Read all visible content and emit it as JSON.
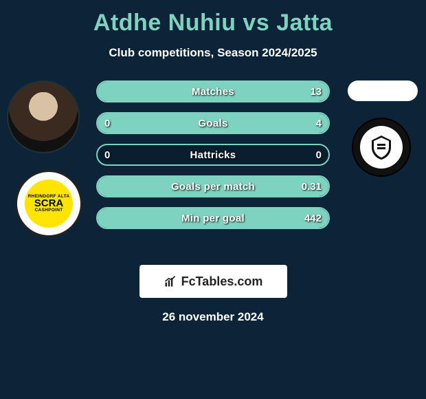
{
  "title": "Atdhe Nuhiu vs Jatta",
  "subtitle": "Club competitions, Season 2024/2025",
  "date": "26 november 2024",
  "brand": "FcTables.com",
  "colors": {
    "background": "#0d2438",
    "accent": "#7dd3c0",
    "pill_bg": "#0a1e2f",
    "text": "#ffffff"
  },
  "left_badge": {
    "top": "SCRA",
    "sub": "CASHPOINT"
  },
  "stats": [
    {
      "label": "Matches",
      "left_val": "",
      "right_val": "13",
      "fill_left_pct": 0,
      "fill_right_pct": 100
    },
    {
      "label": "Goals",
      "left_val": "0",
      "right_val": "4",
      "fill_left_pct": 0,
      "fill_right_pct": 100
    },
    {
      "label": "Hattricks",
      "left_val": "0",
      "right_val": "0",
      "fill_left_pct": 0,
      "fill_right_pct": 0
    },
    {
      "label": "Goals per match",
      "left_val": "",
      "right_val": "0.31",
      "fill_left_pct": 0,
      "fill_right_pct": 100
    },
    {
      "label": "Min per goal",
      "left_val": "",
      "right_val": "442",
      "fill_left_pct": 0,
      "fill_right_pct": 100
    }
  ]
}
